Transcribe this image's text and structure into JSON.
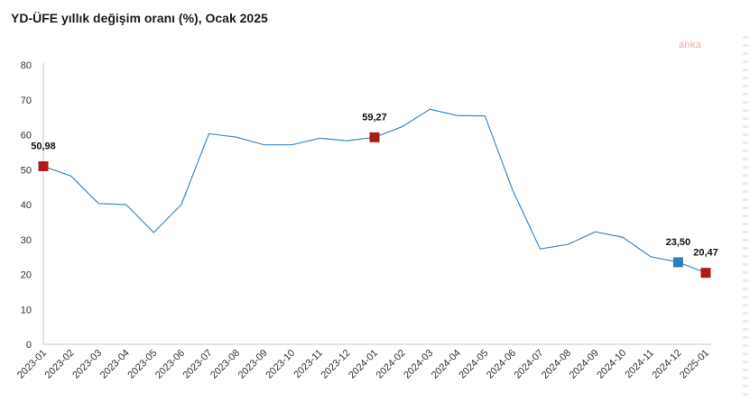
{
  "title": "YD-ÜFE yıllık değişim oranı (%), Ocak 2025",
  "watermark": "anka",
  "colors": {
    "line": "#3a8bc2",
    "highlight_red": "#b0191c",
    "highlight_blue": "#2e7dbd",
    "axis": "#c8c8c8"
  },
  "chart_data": {
    "type": "line",
    "x": [
      "2023-01",
      "2023-02",
      "2023-03",
      "2023-04",
      "2023-05",
      "2023-06",
      "2023-07",
      "2023-08",
      "2023-09",
      "2023-10",
      "2023-11",
      "2023-12",
      "2024-01",
      "2024-02",
      "2024-03",
      "2024-04",
      "2024-05",
      "2024-06",
      "2024-07",
      "2024-08",
      "2024-09",
      "2024-10",
      "2024-11",
      "2024-12",
      "2025-01"
    ],
    "series": [
      {
        "values": [
          50.98,
          48.2,
          40.3,
          40.0,
          32.0,
          40.0,
          60.3,
          59.3,
          57.1,
          57.1,
          59.0,
          58.3,
          59.27,
          62.3,
          67.3,
          65.5,
          65.4,
          44.2,
          27.3,
          28.6,
          32.2,
          30.6,
          25.1,
          23.5,
          20.47
        ]
      }
    ],
    "data_labels": [
      {
        "index": 0,
        "text": "50,98",
        "marker": "red"
      },
      {
        "index": 12,
        "text": "59,27",
        "marker": "red"
      },
      {
        "index": 23,
        "text": "23,50",
        "marker": "blue"
      },
      {
        "index": 24,
        "text": "20,47",
        "marker": "red"
      }
    ],
    "ylim": [
      0,
      80
    ],
    "yticks": [
      0,
      10,
      20,
      30,
      40,
      50,
      60,
      70,
      80
    ],
    "xlabel": "",
    "ylabel": "",
    "grid": false
  }
}
